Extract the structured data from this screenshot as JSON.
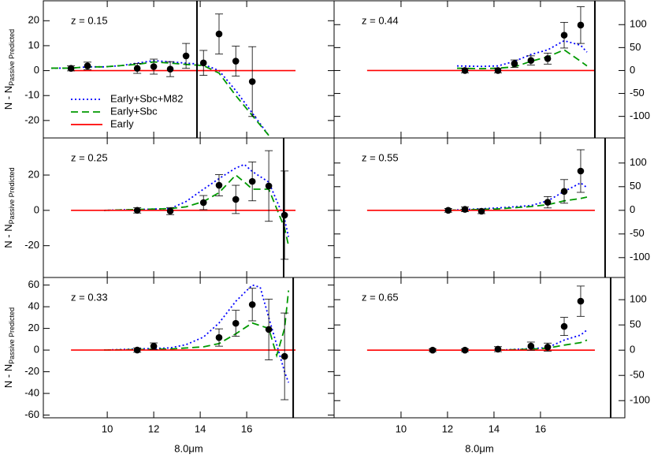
{
  "chart_data": [
    {
      "type": "line",
      "annotation": "z = 0.15",
      "legend": "center left",
      "ylabel": "N - N",
      "ylabel_subscript": "Passive Predicted",
      "xlim": [
        7.25,
        19.76
      ],
      "ylim": [
        -27,
        28
      ],
      "xticks": [
        10,
        12,
        14,
        16
      ],
      "yticks": [
        -20,
        -10,
        0,
        10,
        20
      ],
      "y_axis_side": "left",
      "cutoff_x": 13.86,
      "series": [
        {
          "name": "Early+Sbc+M82",
          "color": "#0000ff",
          "style": "dotted",
          "x": [
            7.59,
            8.44,
            9.15,
            9.86,
            10.58,
            11.29,
            12.0,
            12.71,
            13.39,
            14.14,
            14.81,
            15.53,
            16.24,
            16.95
          ],
          "values": [
            1,
            1,
            1.5,
            1.5,
            2,
            3,
            4,
            3.5,
            3,
            2.5,
            0,
            -8,
            -17,
            -26
          ]
        },
        {
          "name": "Early+Sbc",
          "color": "#009900",
          "style": "dashed",
          "x": [
            7.59,
            8.44,
            9.15,
            9.86,
            10.58,
            11.29,
            12.0,
            12.71,
            13.39,
            14.14,
            14.81,
            15.53,
            16.24,
            16.95
          ],
          "values": [
            1,
            1,
            1.5,
            1.5,
            2,
            2.5,
            3.5,
            3,
            2.5,
            2,
            -1,
            -10,
            -18,
            -26
          ]
        },
        {
          "name": "Early",
          "color": "#ff0000",
          "style": "solid",
          "x": [
            8.44,
            18.1
          ],
          "values": [
            0,
            0
          ]
        }
      ],
      "points": {
        "x": [
          8.44,
          9.15,
          11.29,
          12.0,
          12.71,
          13.39,
          14.14,
          14.81,
          15.53,
          16.24
        ],
        "values": [
          0.9,
          1.9,
          0.9,
          1.6,
          0.6,
          5.9,
          3.1,
          14.7,
          3.8,
          -4.4
        ],
        "errors": [
          1,
          1.5,
          2,
          3,
          3,
          5,
          5,
          8,
          6,
          14
        ]
      }
    },
    {
      "type": "line",
      "annotation": "z = 0.44",
      "xlim": [
        7.12,
        19.63
      ],
      "ylim": [
        -147,
        152
      ],
      "xticks": [
        10,
        12,
        14,
        16
      ],
      "yticks": [
        -100,
        -50,
        0,
        50,
        100
      ],
      "y_axis_side": "right",
      "cutoff_x": 18.34,
      "series": [
        {
          "color": "#0000ff",
          "style": "dotted",
          "x": [
            12.41,
            13.46,
            14.17,
            14.88,
            15.59,
            16.31,
            17.02,
            17.73,
            18.0
          ],
          "values": [
            10,
            9,
            10,
            20,
            35,
            45,
            65,
            55,
            40
          ]
        },
        {
          "color": "#009900",
          "style": "dashed",
          "x": [
            12.41,
            13.46,
            14.17,
            14.88,
            15.59,
            16.31,
            17.02,
            17.73,
            18.0
          ],
          "values": [
            5,
            4,
            5,
            8,
            20,
            30,
            45,
            20,
            10
          ]
        },
        {
          "color": "#ff0000",
          "style": "solid",
          "x": [
            8.54,
            18.34
          ],
          "values": [
            0,
            0
          ]
        }
      ],
      "points": {
        "x": [
          12.75,
          14.17,
          14.88,
          15.59,
          16.31,
          17.02,
          17.73
        ],
        "values": [
          0,
          0,
          15,
          22,
          26,
          77,
          99
        ],
        "errors": [
          5,
          5,
          8,
          10,
          12,
          28,
          40
        ]
      }
    },
    {
      "type": "line",
      "annotation": "z = 0.25",
      "ylabel": "N - N",
      "ylabel_subscript": "Passive Predicted",
      "xlim": [
        7.25,
        19.76
      ],
      "ylim": [
        -38,
        41
      ],
      "xticks": [
        10,
        12,
        14,
        16
      ],
      "yticks": [
        -20,
        0,
        20
      ],
      "y_axis_side": "left",
      "cutoff_x": 17.59,
      "series": [
        {
          "color": "#0000ff",
          "style": "dotted",
          "x": [
            9.86,
            11.29,
            12.71,
            13.39,
            14.14,
            14.81,
            15.53,
            15.9,
            16.24,
            16.95,
            17.63,
            17.8
          ],
          "values": [
            0,
            0.5,
            1,
            5,
            12,
            18,
            24,
            26,
            22,
            16,
            -5,
            -15
          ]
        },
        {
          "color": "#009900",
          "style": "dashed",
          "x": [
            9.86,
            11.29,
            12.71,
            13.39,
            14.14,
            14.81,
            15.53,
            15.9,
            16.24,
            16.95,
            17.63,
            17.8
          ],
          "values": [
            0,
            0.5,
            1,
            2,
            5,
            10,
            20,
            16,
            12,
            12,
            -10,
            -20
          ]
        },
        {
          "color": "#ff0000",
          "style": "solid",
          "x": [
            8.44,
            18.1
          ],
          "values": [
            0,
            0
          ]
        }
      ],
      "points": {
        "x": [
          11.29,
          12.71,
          14.14,
          14.81,
          15.53,
          16.24,
          16.95,
          17.63
        ],
        "values": [
          0,
          -0.4,
          4.4,
          14.2,
          6.2,
          16.4,
          13.8,
          -2.7
        ],
        "errors": [
          1.5,
          2,
          4,
          6,
          8,
          11,
          20,
          25
        ]
      }
    },
    {
      "type": "line",
      "annotation": "z = 0.55",
      "xlim": [
        7.12,
        19.63
      ],
      "ylim": [
        -142,
        153
      ],
      "xticks": [
        10,
        12,
        14,
        16
      ],
      "yticks": [
        -100,
        -50,
        0,
        50,
        100
      ],
      "y_axis_side": "right",
      "cutoff_x": 18.78,
      "series": [
        {
          "color": "#0000ff",
          "style": "dotted",
          "x": [
            12.07,
            14.17,
            15.59,
            16.31,
            17.02,
            17.73,
            18.0
          ],
          "values": [
            0,
            5,
            10,
            20,
            40,
            58,
            48
          ]
        },
        {
          "color": "#009900",
          "style": "dashed",
          "x": [
            12.07,
            14.17,
            15.59,
            16.31,
            17.02,
            17.73,
            18.0
          ],
          "values": [
            0,
            3,
            8,
            12,
            20,
            25,
            28
          ]
        },
        {
          "color": "#ff0000",
          "style": "solid",
          "x": [
            8.54,
            18.34
          ],
          "values": [
            0,
            0
          ]
        }
      ],
      "points": {
        "x": [
          12.03,
          12.75,
          13.46,
          16.31,
          17.02,
          17.73
        ],
        "values": [
          0,
          2,
          -2,
          17,
          40,
          83
        ],
        "errors": [
          4,
          5,
          5,
          12,
          25,
          45
        ]
      }
    },
    {
      "type": "line",
      "annotation": "z = 0.33",
      "ylabel": "N - N",
      "ylabel_subscript": "Passive Predicted",
      "xlabel": "8.0μm",
      "xlim": [
        7.25,
        19.76
      ],
      "ylim": [
        -62.5,
        67
      ],
      "xticks": [
        10,
        12,
        14,
        16
      ],
      "yticks": [
        -60,
        -40,
        -20,
        0,
        20,
        40,
        60
      ],
      "y_axis_side": "left",
      "cutoff_x": 18.0,
      "series": [
        {
          "color": "#0000ff",
          "style": "dotted",
          "x": [
            9.86,
            12.71,
            13.39,
            14.14,
            14.81,
            15.53,
            16.24,
            16.58,
            16.95,
            17.63,
            17.8
          ],
          "values": [
            0,
            2,
            5,
            12,
            25,
            45,
            60,
            58,
            30,
            -20,
            -30
          ]
        },
        {
          "color": "#009900",
          "style": "dashed",
          "x": [
            9.86,
            12.71,
            14.14,
            14.81,
            15.53,
            16.24,
            16.95,
            17.29,
            17.63,
            17.8
          ],
          "values": [
            0,
            1,
            3,
            6,
            15,
            25,
            20,
            -5,
            20,
            55
          ]
        },
        {
          "color": "#ff0000",
          "style": "solid",
          "x": [
            8.44,
            18.1
          ],
          "values": [
            0,
            0
          ]
        }
      ],
      "points": {
        "x": [
          11.29,
          12.0,
          14.81,
          15.53,
          16.24,
          16.95,
          17.63
        ],
        "values": [
          0,
          3.6,
          11.6,
          24.7,
          42,
          19,
          -5.8
        ],
        "errors": [
          2,
          3,
          8,
          12,
          15,
          28,
          40
        ]
      }
    },
    {
      "type": "line",
      "annotation": "z = 0.65",
      "xlabel": "8.0μm",
      "xlim": [
        7.12,
        19.63
      ],
      "ylim": [
        -134,
        144
      ],
      "xticks": [
        10,
        12,
        14,
        16
      ],
      "yticks": [
        -100,
        -50,
        0,
        50,
        100
      ],
      "y_axis_side": "right",
      "cutoff_x": 19.02,
      "series": [
        {
          "color": "#0000ff",
          "style": "dotted",
          "x": [
            14.17,
            15.59,
            16.31,
            17.02,
            17.73,
            18.0
          ],
          "values": [
            0,
            3,
            5,
            20,
            30,
            40
          ]
        },
        {
          "color": "#009900",
          "style": "dashed",
          "x": [
            14.17,
            15.59,
            16.31,
            17.02,
            17.73,
            18.0
          ],
          "values": [
            0,
            2,
            4,
            10,
            15,
            20
          ]
        },
        {
          "color": "#ff0000",
          "style": "solid",
          "x": [
            8.54,
            18.34
          ],
          "values": [
            0,
            0
          ]
        }
      ],
      "points": {
        "x": [
          11.36,
          12.75,
          14.17,
          15.59,
          16.31,
          17.02,
          17.73
        ],
        "values": [
          0,
          0,
          2,
          8,
          6,
          47,
          97
        ],
        "errors": [
          3,
          3,
          5,
          8,
          8,
          18,
          30
        ]
      }
    }
  ]
}
